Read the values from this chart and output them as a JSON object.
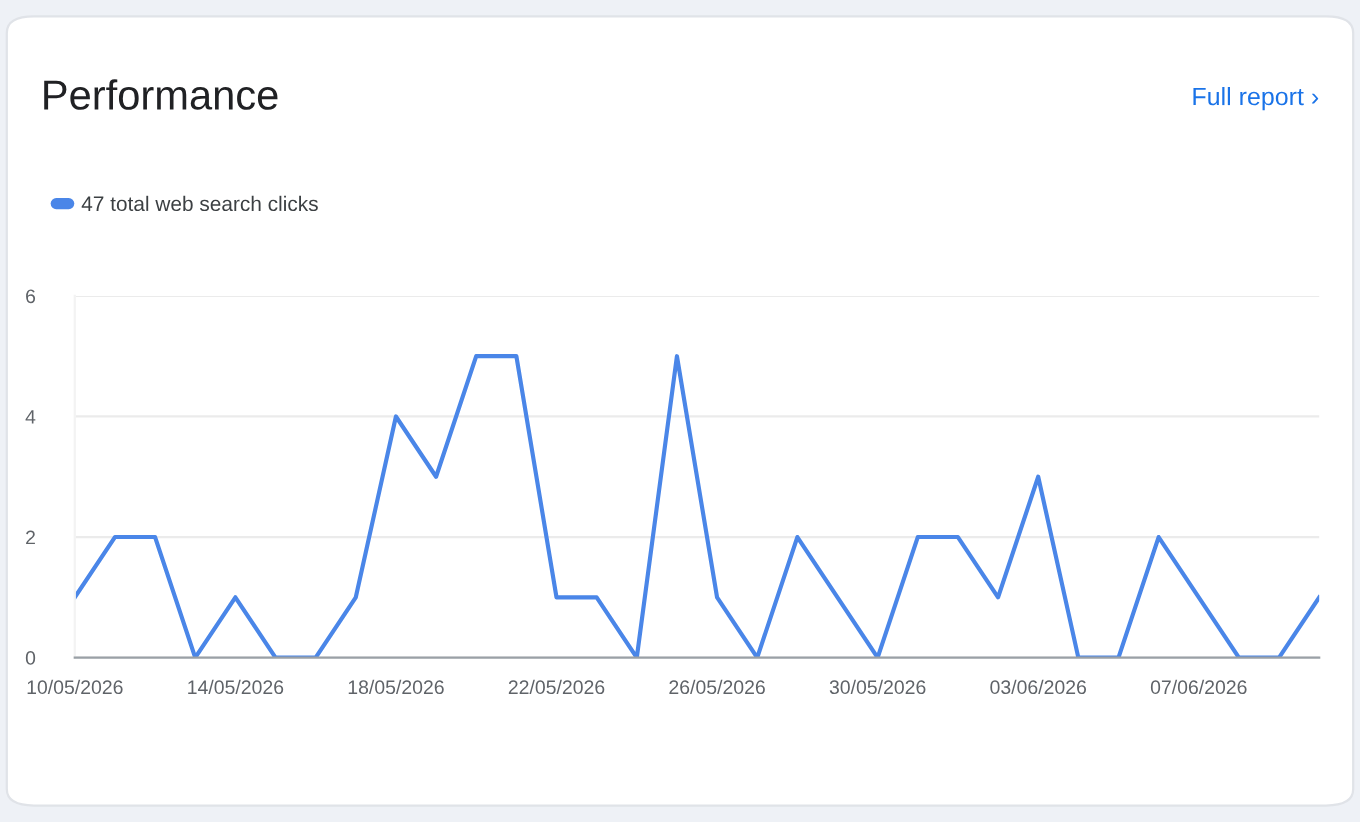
{
  "chart_data": {
    "type": "line",
    "title": "Performance",
    "annotations": [
      "Full report ›"
    ],
    "x": [
      "2026-05-10",
      "2026-05-11",
      "2026-05-12",
      "2026-05-13",
      "2026-05-14",
      "2026-05-15",
      "2026-05-16",
      "2026-05-17",
      "2026-05-18",
      "2026-05-19",
      "2026-05-20",
      "2026-05-21",
      "2026-05-22",
      "2026-05-23",
      "2026-05-24",
      "2026-05-25",
      "2026-05-26",
      "2026-05-27",
      "2026-05-28",
      "2026-05-29",
      "2026-05-30",
      "2026-05-31",
      "2026-06-01",
      "2026-06-02",
      "2026-06-03",
      "2026-06-04",
      "2026-06-05",
      "2026-06-06",
      "2026-06-07",
      "2026-06-08",
      "2026-06-09",
      "2026-06-10"
    ],
    "series": [
      {
        "name": "47 total web search clicks",
        "color": "#4a86e8",
        "values": [
          1,
          2,
          2,
          0,
          1,
          0,
          0,
          1,
          4,
          3,
          5,
          5,
          1,
          1,
          0,
          5,
          1,
          0,
          2,
          1,
          0,
          2,
          2,
          1,
          3,
          0,
          0,
          2,
          1,
          0,
          0,
          1
        ]
      }
    ],
    "xlim": [
      "2026-05-10",
      "2026-06-10"
    ],
    "xticks": [
      {
        "value": "2026-05-10",
        "label": "10/05/2026"
      },
      {
        "value": "2026-05-14",
        "label": "14/05/2026"
      },
      {
        "value": "2026-05-18",
        "label": "18/05/2026"
      },
      {
        "value": "2026-05-22",
        "label": "22/05/2026"
      },
      {
        "value": "2026-05-26",
        "label": "26/05/2026"
      },
      {
        "value": "2026-05-30",
        "label": "30/05/2026"
      },
      {
        "value": "2026-06-03",
        "label": "03/06/2026"
      },
      {
        "value": "2026-06-07",
        "label": "07/06/2026"
      }
    ],
    "ylim": [
      0,
      6
    ],
    "yticks": [
      0,
      2,
      4,
      6
    ],
    "grid": "y",
    "legend": "top left",
    "marker": "none",
    "line_style": "solid"
  }
}
